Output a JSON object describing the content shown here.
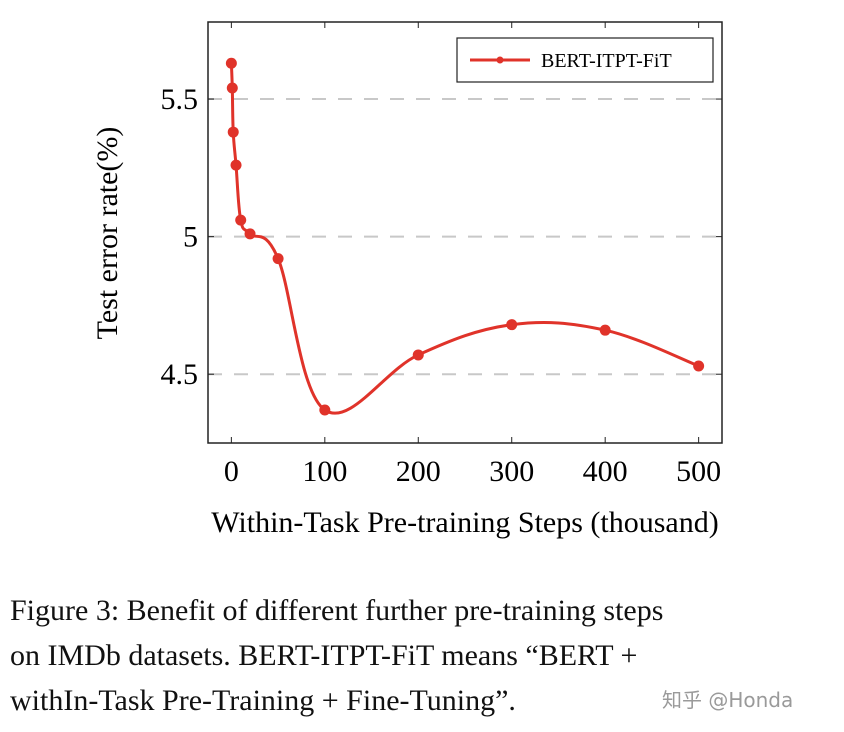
{
  "chart_data": {
    "type": "line",
    "xlabel": "Within-Task Pre-training Steps (thousand)",
    "ylabel": "Test error rate(%)",
    "xlim": [
      -25,
      525
    ],
    "ylim": [
      4.25,
      5.78
    ],
    "xticks": [
      0,
      100,
      200,
      300,
      400,
      500
    ],
    "yticks": [
      4.5,
      5,
      5.5
    ],
    "ytick_labels": [
      "4.5",
      "5",
      "5.5"
    ],
    "grid": "horizontal dashed",
    "legend_position": "top-right",
    "smooth": true,
    "series": [
      {
        "name": "BERT-ITPT-FiT",
        "color": "#e0332a",
        "x": [
          0,
          1,
          2,
          5,
          10,
          20,
          50,
          100,
          200,
          300,
          400,
          500
        ],
        "y": [
          5.63,
          5.54,
          5.38,
          5.26,
          5.06,
          5.01,
          4.92,
          4.37,
          4.57,
          4.68,
          4.66,
          4.53
        ]
      }
    ]
  },
  "caption": {
    "lines": [
      "Figure 3: Benefit of different further pre-training steps",
      "on IMDb datasets.  BERT-ITPT-FiT means “BERT +",
      "withIn-Task Pre-Training + Fine-Tuning”."
    ]
  },
  "watermark": "知乎 @Honda"
}
